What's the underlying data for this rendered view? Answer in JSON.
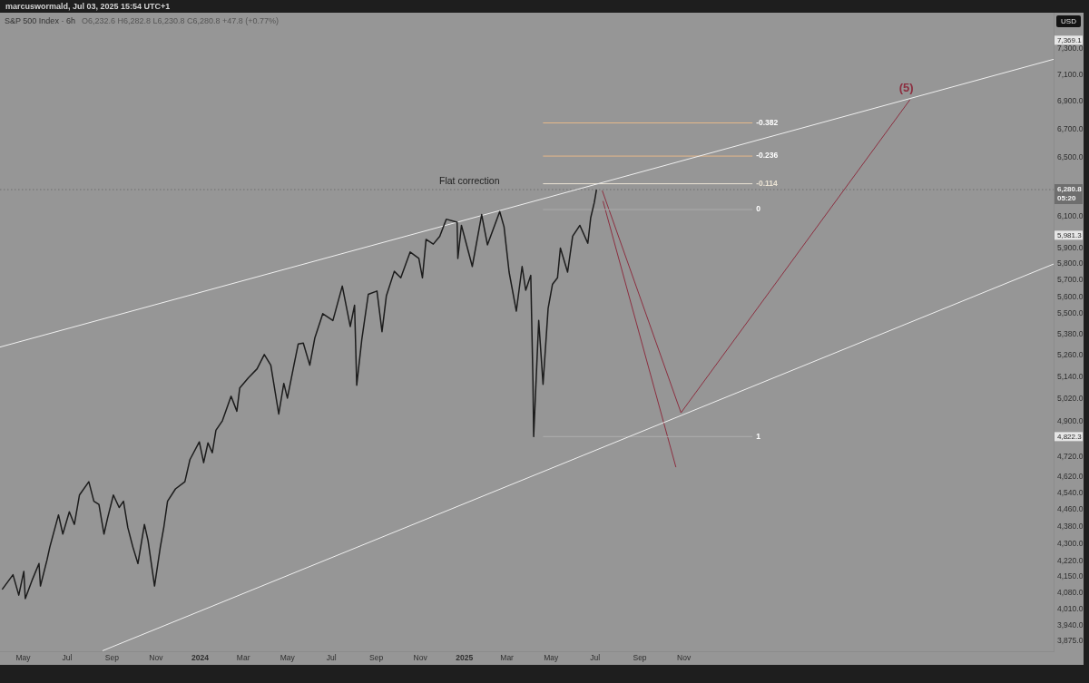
{
  "chart_data": {
    "type": "line",
    "title": "S&P 500 Index · 6h",
    "subtitle": "O6,232.6 H6,282.8 L6,230.8 C6,280.8 +47.8 (+0.77%)",
    "ylabel": "USD",
    "log": true,
    "xlim": [
      "2023-03-30",
      "2027-03-28"
    ],
    "xticks": [
      {
        "value": "2023-05-01",
        "label": "May"
      },
      {
        "value": "2023-07-01",
        "label": "Jul"
      },
      {
        "value": "2023-09-01",
        "label": "Sep"
      },
      {
        "value": "2023-11-01",
        "label": "Nov"
      },
      {
        "value": "2024-01-01",
        "label": "2024"
      },
      {
        "value": "2024-03-01",
        "label": "Mar"
      },
      {
        "value": "2024-05-01",
        "label": "May"
      },
      {
        "value": "2024-07-01",
        "label": "Jul"
      },
      {
        "value": "2024-09-01",
        "label": "Sep"
      },
      {
        "value": "2024-11-01",
        "label": "Nov"
      },
      {
        "value": "2025-01-01",
        "label": "2025"
      },
      {
        "value": "2025-03-01",
        "label": "Mar"
      },
      {
        "value": "2025-05-01",
        "label": "May"
      },
      {
        "value": "2025-07-01",
        "label": "Jul"
      },
      {
        "value": "2025-09-01",
        "label": "Sep"
      },
      {
        "value": "2025-11-01",
        "label": "Nov"
      }
    ],
    "ylim": [
      3833,
      7589
    ],
    "yticks": [
      {
        "value": 7300,
        "label": "7,300.0"
      },
      {
        "value": 7100,
        "label": "7,100.0"
      },
      {
        "value": 6900,
        "label": "6,900.0"
      },
      {
        "value": 6700,
        "label": "6,700.0"
      },
      {
        "value": 6500,
        "label": "6,500.0"
      },
      {
        "value": 6100,
        "label": "6,100.0"
      },
      {
        "value": 5900,
        "label": "5,900.0"
      },
      {
        "value": 5800,
        "label": "5,800.0"
      },
      {
        "value": 5700,
        "label": "5,700.0"
      },
      {
        "value": 5600,
        "label": "5,600.0"
      },
      {
        "value": 5500,
        "label": "5,500.0"
      },
      {
        "value": 5380,
        "label": "5,380.0"
      },
      {
        "value": 5260,
        "label": "5,260.0"
      },
      {
        "value": 5140,
        "label": "5,140.0"
      },
      {
        "value": 5020,
        "label": "5,020.0"
      },
      {
        "value": 4900,
        "label": "4,900.0"
      },
      {
        "value": 4720,
        "label": "4,720.0"
      },
      {
        "value": 4620,
        "label": "4,620.0"
      },
      {
        "value": 4540,
        "label": "4,540.0"
      },
      {
        "value": 4460,
        "label": "4,460.0"
      },
      {
        "value": 4380,
        "label": "4,380.0"
      },
      {
        "value": 4300,
        "label": "4,300.0"
      },
      {
        "value": 4220,
        "label": "4,220.0"
      },
      {
        "value": 4150,
        "label": "4,150.0"
      },
      {
        "value": 4080,
        "label": "4,080.0"
      },
      {
        "value": 4010,
        "label": "4,010.0"
      },
      {
        "value": 3940,
        "label": "3,940.0"
      },
      {
        "value": 3875,
        "label": "3,875.0"
      }
    ],
    "ref_lines": [
      {
        "axis": "y",
        "value": 6280.8,
        "label": "6,280.8\n05:20",
        "color": "#6e6e6e",
        "line_style": "dotted"
      }
    ],
    "series": [
      {
        "color": "#1c1c1c",
        "x": [
          "2023-04-02",
          "2023-04-17",
          "2023-04-25",
          "2023-05-02",
          "2023-05-04",
          "2023-05-14",
          "2023-05-23",
          "2023-05-25",
          "2023-06-03",
          "2023-06-07",
          "2023-06-19",
          "2023-06-25",
          "2023-07-04",
          "2023-07-11",
          "2023-07-18",
          "2023-07-31",
          "2023-08-07",
          "2023-08-14",
          "2023-08-21",
          "2023-08-26",
          "2023-09-03",
          "2023-09-11",
          "2023-09-17",
          "2023-09-23",
          "2023-09-30",
          "2023-10-07",
          "2023-10-16",
          "2023-10-21",
          "2023-10-30",
          "2023-11-07",
          "2023-11-12",
          "2023-11-17",
          "2023-11-28",
          "2023-12-11",
          "2023-12-18",
          "2023-12-31",
          "2024-01-06",
          "2024-01-12",
          "2024-01-18",
          "2024-01-23",
          "2024-02-01",
          "2024-02-13",
          "2024-02-21",
          "2024-02-25",
          "2024-03-08",
          "2024-03-20",
          "2024-03-30",
          "2024-04-08",
          "2024-04-19",
          "2024-04-26",
          "2024-05-01",
          "2024-05-10",
          "2024-05-16",
          "2024-05-23",
          "2024-06-01",
          "2024-06-08",
          "2024-06-19",
          "2024-07-03",
          "2024-07-16",
          "2024-07-27",
          "2024-08-02",
          "2024-08-05",
          "2024-08-12",
          "2024-08-21",
          "2024-09-02",
          "2024-09-09",
          "2024-09-15",
          "2024-09-26",
          "2024-10-05",
          "2024-10-18",
          "2024-10-30",
          "2024-11-04",
          "2024-11-09",
          "2024-11-19",
          "2024-11-28",
          "2024-12-07",
          "2024-12-22",
          "2024-12-23",
          "2024-12-28",
          "2025-01-12",
          "2025-01-25",
          "2025-02-02",
          "2025-02-19",
          "2025-02-25",
          "2025-03-04",
          "2025-03-14",
          "2025-03-22",
          "2025-03-27",
          "2025-04-03",
          "2025-04-06",
          "2025-04-07",
          "2025-04-14",
          "2025-04-20",
          "2025-04-27",
          "2025-05-03",
          "2025-05-10",
          "2025-05-14",
          "2025-05-24",
          "2025-05-31",
          "2025-06-10",
          "2025-06-21",
          "2025-06-25",
          "2025-06-30",
          "2025-07-03"
        ],
        "values": [
          4095,
          4160,
          4070,
          4175,
          4055,
          4140,
          4210,
          4110,
          4225,
          4285,
          4435,
          4345,
          4450,
          4390,
          4530,
          4595,
          4500,
          4485,
          4345,
          4420,
          4530,
          4470,
          4500,
          4375,
          4285,
          4210,
          4390,
          4315,
          4110,
          4285,
          4380,
          4500,
          4560,
          4595,
          4705,
          4795,
          4690,
          4790,
          4740,
          4855,
          4905,
          5035,
          4955,
          5080,
          5135,
          5185,
          5265,
          5205,
          4940,
          5105,
          5025,
          5205,
          5325,
          5330,
          5205,
          5360,
          5500,
          5460,
          5665,
          5425,
          5550,
          5095,
          5350,
          5615,
          5635,
          5395,
          5605,
          5755,
          5715,
          5875,
          5835,
          5715,
          5955,
          5925,
          5975,
          6085,
          6065,
          5835,
          6045,
          5785,
          6115,
          5920,
          6135,
          6035,
          5750,
          5515,
          5785,
          5640,
          5730,
          5120,
          4822.3,
          5460,
          5100,
          5530,
          5675,
          5715,
          5900,
          5750,
          5975,
          6045,
          5930,
          6095,
          6195,
          6280.8
        ]
      },
      {
        "color": "#efefef",
        "x": [
          "2023-03-30",
          "2027-03-28"
        ],
        "values": [
          5307,
          7220
        ]
      },
      {
        "color": "#efefef",
        "x": [
          "2023-08-19",
          "2027-03-28"
        ],
        "values": [
          3835,
          5800
        ]
      },
      {
        "name": "-0.382",
        "color": "#e6b98a",
        "x": [
          "2025-04-20",
          "2026-02-04"
        ],
        "values": [
          6745,
          6745
        ]
      },
      {
        "name": "-0.236",
        "color": "#e6b98a",
        "x": [
          "2025-04-20",
          "2026-02-04"
        ],
        "values": [
          6510,
          6510
        ]
      },
      {
        "name": "-0.114",
        "color": "#ebe3d4",
        "x": [
          "2025-04-20",
          "2026-02-04"
        ],
        "values": [
          6320,
          6320
        ]
      },
      {
        "name": "0",
        "color": "#adadad",
        "x": [
          "2025-04-20",
          "2026-02-04"
        ],
        "values": [
          6148,
          6148
        ]
      },
      {
        "name": "1",
        "color": "#adadad",
        "x": [
          "2025-04-20",
          "2026-02-04"
        ],
        "values": [
          4822.3,
          4822.3
        ]
      },
      {
        "color": "#8c2f40",
        "x": [
          "2025-07-12",
          "2025-10-21"
        ],
        "values": [
          6204,
          4667
        ]
      },
      {
        "color": "#8c2f40",
        "x": [
          "2025-07-11",
          "2025-10-28",
          "2026-09-10"
        ],
        "values": [
          6274,
          4947,
          6914
        ]
      }
    ],
    "annotations": [
      "marcuswormald, Jul 03, 2025 15:54 UTC+1",
      "Flat correction",
      {
        "text": "(5)",
        "x": "2026-09-10",
        "y": 6914
      },
      {
        "text": "7,369.1",
        "y": 7369.1
      },
      {
        "text": "5,981.3",
        "y": 5981.3
      },
      {
        "text": "4,822.3",
        "y": 4822.3
      }
    ]
  }
}
